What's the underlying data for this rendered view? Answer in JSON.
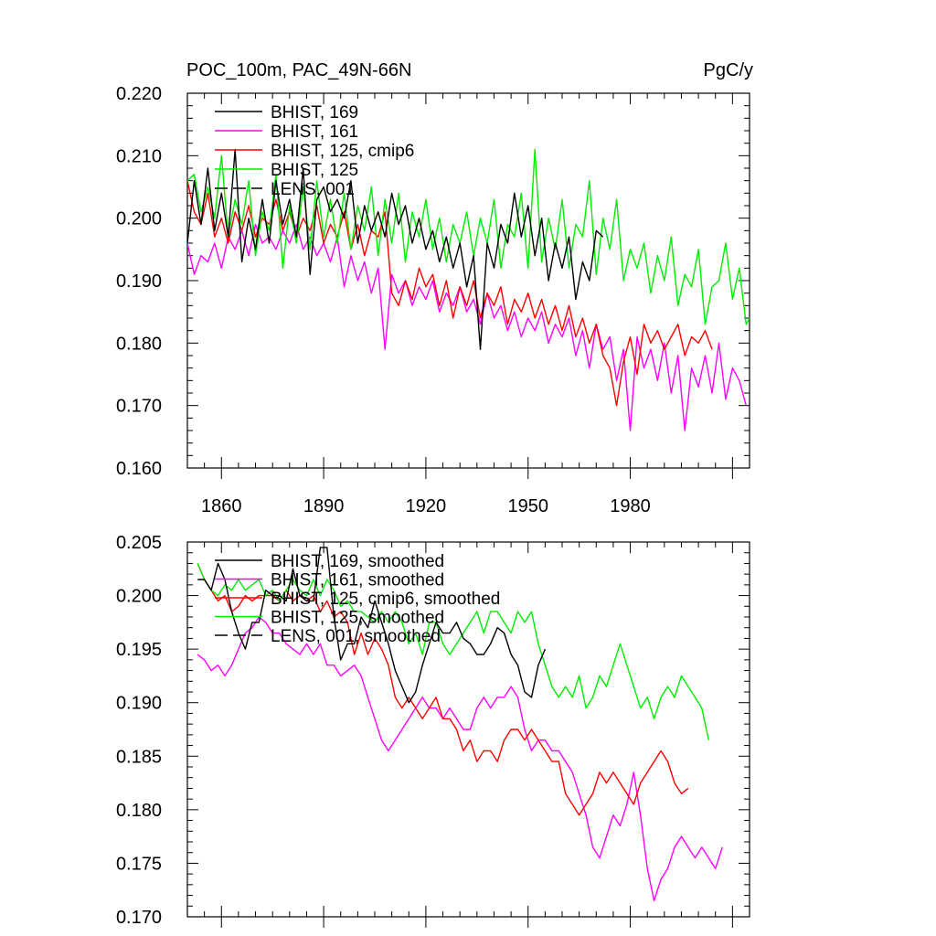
{
  "title_left": "POC_100m, PAC_49N-66N",
  "title_right": "PgC/y",
  "chart_data": [
    {
      "type": "line",
      "title": "POC_100m, PAC_49N-66N",
      "units": "PgC/y",
      "xlim": [
        1850,
        2015
      ],
      "ylim": [
        0.16,
        0.22
      ],
      "x_ticks": [
        1860,
        1890,
        1920,
        1950,
        1980
      ],
      "y_ticks": [
        "0.160",
        "0.170",
        "0.180",
        "0.190",
        "0.200",
        "0.210",
        "0.220"
      ],
      "legend": [
        {
          "label": "BHIST, 169",
          "color": "#000000",
          "dash": ""
        },
        {
          "label": "BHIST, 161",
          "color": "#ff00ff",
          "dash": ""
        },
        {
          "label": "BHIST, 125, cmip6",
          "color": "#ff0000",
          "dash": ""
        },
        {
          "label": "BHIST, 125",
          "color": "#00ee00",
          "dash": ""
        },
        {
          "label": "LENS, 001",
          "color": "#000000",
          "dash": "14,6"
        }
      ],
      "series": [
        {
          "name": "BHIST, 161",
          "color": "#ff00ff",
          "x_start": 1850,
          "step": 2,
          "values": [
            0.196,
            0.191,
            0.194,
            0.193,
            0.196,
            0.192,
            0.197,
            0.195,
            0.198,
            0.194,
            0.199,
            0.196,
            0.197,
            0.195,
            0.198,
            0.196,
            0.199,
            0.195,
            0.197,
            0.194,
            0.196,
            0.193,
            0.197,
            0.189,
            0.194,
            0.19,
            0.193,
            0.188,
            0.192,
            0.179,
            0.191,
            0.188,
            0.19,
            0.186,
            0.189,
            0.187,
            0.19,
            0.185,
            0.188,
            0.186,
            0.189,
            0.185,
            0.187,
            0.183,
            0.188,
            0.184,
            0.186,
            0.182,
            0.185,
            0.181,
            0.184,
            0.182,
            0.185,
            0.18,
            0.183,
            0.181,
            0.184,
            0.178,
            0.182,
            0.176,
            0.183,
            0.179,
            0.181,
            0.174,
            0.179,
            0.166,
            0.181,
            0.176,
            0.179,
            0.174,
            0.18,
            0.172,
            0.178,
            0.166,
            0.176,
            0.173,
            0.178,
            0.172,
            0.18,
            0.171,
            0.176,
            0.174,
            0.17
          ]
        },
        {
          "name": "BHIST, 125, cmip6",
          "color": "#ff0000",
          "x_start": 1850,
          "step": 2,
          "values": [
            0.206,
            0.201,
            0.199,
            0.204,
            0.197,
            0.2,
            0.196,
            0.201,
            0.198,
            0.202,
            0.197,
            0.2,
            0.199,
            0.203,
            0.198,
            0.201,
            0.197,
            0.2,
            0.198,
            0.202,
            0.196,
            0.199,
            0.197,
            0.201,
            0.195,
            0.199,
            0.194,
            0.198,
            0.197,
            0.201,
            0.188,
            0.186,
            0.19,
            0.187,
            0.192,
            0.189,
            0.191,
            0.186,
            0.19,
            0.184,
            0.189,
            0.186,
            0.19,
            0.184,
            0.188,
            0.186,
            0.189,
            0.183,
            0.187,
            0.185,
            0.188,
            0.184,
            0.187,
            0.183,
            0.186,
            0.182,
            0.186,
            0.181,
            0.184,
            0.18,
            0.183,
            0.178,
            0.176,
            0.17,
            0.177,
            0.181,
            0.175,
            0.183,
            0.18,
            0.182,
            0.179,
            0.181,
            0.183,
            0.178,
            0.181,
            0.18,
            0.182,
            0.179
          ]
        },
        {
          "name": "BHIST, 125",
          "color": "#00ee00",
          "x_start": 1850,
          "step": 2,
          "values": [
            0.206,
            0.207,
            0.201,
            0.205,
            0.2,
            0.21,
            0.197,
            0.203,
            0.199,
            0.206,
            0.194,
            0.201,
            0.198,
            0.207,
            0.192,
            0.202,
            0.196,
            0.205,
            0.195,
            0.206,
            0.197,
            0.203,
            0.196,
            0.204,
            0.195,
            0.202,
            0.198,
            0.205,
            0.194,
            0.203,
            0.196,
            0.204,
            0.193,
            0.201,
            0.197,
            0.203,
            0.195,
            0.2,
            0.193,
            0.199,
            0.196,
            0.201,
            0.194,
            0.2,
            0.196,
            0.203,
            0.192,
            0.199,
            0.197,
            0.204,
            0.192,
            0.211,
            0.193,
            0.2,
            0.195,
            0.203,
            0.192,
            0.199,
            0.197,
            0.206,
            0.191,
            0.2,
            0.195,
            0.203,
            0.19,
            0.195,
            0.192,
            0.196,
            0.188,
            0.194,
            0.19,
            0.197,
            0.186,
            0.191,
            0.189,
            0.195,
            0.183,
            0.189,
            0.19,
            0.196,
            0.187,
            0.192,
            0.183,
            0.185
          ]
        },
        {
          "name": "BHIST, 169",
          "color": "#000000",
          "x_start": 1850,
          "step": 2,
          "values": [
            0.196,
            0.206,
            0.199,
            0.208,
            0.198,
            0.204,
            0.197,
            0.211,
            0.193,
            0.2,
            0.195,
            0.203,
            0.196,
            0.206,
            0.199,
            0.203,
            0.197,
            0.208,
            0.191,
            0.203,
            0.205,
            0.201,
            0.203,
            0.2,
            0.206,
            0.196,
            0.202,
            0.198,
            0.201,
            0.197,
            0.204,
            0.199,
            0.202,
            0.196,
            0.2,
            0.195,
            0.198,
            0.193,
            0.197,
            0.192,
            0.196,
            0.189,
            0.194,
            0.179,
            0.196,
            0.192,
            0.199,
            0.196,
            0.204,
            0.197,
            0.202,
            0.194,
            0.2,
            0.19,
            0.196,
            0.192,
            0.197,
            0.187,
            0.193,
            0.19,
            0.198,
            0.197
          ]
        }
      ]
    },
    {
      "type": "line",
      "title": "",
      "xlim": [
        1850,
        2015
      ],
      "ylim": [
        0.17,
        0.205
      ],
      "x_ticks": [
        1860,
        1890,
        1920,
        1950,
        1980
      ],
      "y_ticks": [
        "0.170",
        "0.175",
        "0.180",
        "0.185",
        "0.190",
        "0.195",
        "0.200",
        "0.205"
      ],
      "legend": [
        {
          "label": "BHIST, 169, smoothed",
          "color": "#000000",
          "dash": ""
        },
        {
          "label": "BHIST, 161, smoothed",
          "color": "#ff00ff",
          "dash": ""
        },
        {
          "label": "BHIST, 125, cmip6, smoothed",
          "color": "#ff0000",
          "dash": ""
        },
        {
          "label": "BHIST, 125, smoothed",
          "color": "#00ee00",
          "dash": ""
        },
        {
          "label": "LENS, 001, smoothed",
          "color": "#000000",
          "dash": "14,6"
        }
      ],
      "series": [
        {
          "name": "BHIST, 161, smoothed",
          "color": "#ff00ff",
          "x_start": 1853,
          "step": 2,
          "values": [
            0.1945,
            0.194,
            0.193,
            0.1935,
            0.1925,
            0.1935,
            0.195,
            0.1965,
            0.197,
            0.198,
            0.1975,
            0.1965,
            0.1965,
            0.1955,
            0.195,
            0.1945,
            0.1955,
            0.1945,
            0.1955,
            0.1935,
            0.1935,
            0.1925,
            0.193,
            0.1935,
            0.1925,
            0.1905,
            0.1885,
            0.1865,
            0.1855,
            0.1865,
            0.1875,
            0.1885,
            0.1895,
            0.1905,
            0.1895,
            0.1895,
            0.1885,
            0.1895,
            0.1885,
            0.1875,
            0.1875,
            0.1895,
            0.1905,
            0.1895,
            0.1905,
            0.1905,
            0.1915,
            0.1905,
            0.1875,
            0.1855,
            0.1865,
            0.1865,
            0.1855,
            0.1855,
            0.1845,
            0.1835,
            0.1815,
            0.1795,
            0.1765,
            0.1755,
            0.1775,
            0.1795,
            0.1785,
            0.1805,
            0.1835,
            0.1795,
            0.1745,
            0.1715,
            0.1735,
            0.1745,
            0.1765,
            0.1775,
            0.1765,
            0.1755,
            0.1765,
            0.1755,
            0.1745,
            0.1765
          ]
        },
        {
          "name": "BHIST, 125, cmip6, smoothed",
          "color": "#ff0000",
          "x_start": 1853,
          "step": 2,
          "values": [
            0.203,
            0.2015,
            0.2005,
            0.1995,
            0.2,
            0.1985,
            0.199,
            0.2,
            0.1995,
            0.2,
            0.2,
            0.2,
            0.1995,
            0.2005,
            0.1995,
            0.2,
            0.1995,
            0.2,
            0.1985,
            0.1995,
            0.198,
            0.1985,
            0.1975,
            0.1945,
            0.1965,
            0.1945,
            0.196,
            0.195,
            0.1935,
            0.1905,
            0.1895,
            0.1905,
            0.1895,
            0.1885,
            0.1895,
            0.1905,
            0.1885,
            0.1885,
            0.1875,
            0.1855,
            0.1865,
            0.1845,
            0.1855,
            0.1855,
            0.1845,
            0.1865,
            0.1875,
            0.1875,
            0.1865,
            0.1875,
            0.1865,
            0.1855,
            0.1845,
            0.1845,
            0.1815,
            0.1805,
            0.1795,
            0.1805,
            0.1815,
            0.1835,
            0.1825,
            0.1835,
            0.1825,
            0.1815,
            0.1805,
            0.1825,
            0.1835,
            0.1845,
            0.1855,
            0.1845,
            0.1825,
            0.1815,
            0.182
          ]
        },
        {
          "name": "BHIST, 125, smoothed",
          "color": "#00ee00",
          "x_start": 1853,
          "step": 2,
          "values": [
            0.203,
            0.2015,
            0.2005,
            0.2,
            0.201,
            0.2005,
            0.2015,
            0.2005,
            0.201,
            0.2015,
            0.2,
            0.2005,
            0.1995,
            0.2005,
            0.2015,
            0.2005,
            0.2,
            0.2015,
            0.2,
            0.2015,
            0.2005,
            0.199,
            0.1995,
            0.1985,
            0.1985,
            0.198,
            0.1975,
            0.1985,
            0.1975,
            0.1985,
            0.1975,
            0.1955,
            0.1965,
            0.1945,
            0.1975,
            0.1975,
            0.1955,
            0.1945,
            0.1955,
            0.1965,
            0.1975,
            0.1985,
            0.1965,
            0.1985,
            0.1985,
            0.1975,
            0.1965,
            0.1985,
            0.1975,
            0.1985,
            0.1955,
            0.1935,
            0.1915,
            0.1905,
            0.1915,
            0.1905,
            0.1925,
            0.1895,
            0.1905,
            0.1925,
            0.1915,
            0.1935,
            0.1955,
            0.1935,
            0.1915,
            0.1895,
            0.1905,
            0.1885,
            0.1905,
            0.1915,
            0.1905,
            0.1925,
            0.1915,
            0.1905,
            0.1895,
            0.1865
          ]
        },
        {
          "name": "BHIST, 169, smoothed",
          "color": "#000000",
          "x_start": 1853,
          "step": 2,
          "values": [
            0.2015,
            0.2015,
            0.2005,
            0.203,
            0.2015,
            0.1985,
            0.1965,
            0.195,
            0.1975,
            0.1975,
            0.2005,
            0.2,
            0.2,
            0.1995,
            0.2025,
            0.2,
            0.1995,
            0.1995,
            0.2045,
            0.2045,
            0.198,
            0.194,
            0.1955,
            0.1955,
            0.198,
            0.197,
            0.1995,
            0.1975,
            0.1955,
            0.193,
            0.1915,
            0.19,
            0.191,
            0.1935,
            0.1955,
            0.1975,
            0.1965,
            0.1965,
            0.1975,
            0.196,
            0.1955,
            0.1945,
            0.1945,
            0.1955,
            0.197,
            0.1965,
            0.1945,
            0.1935,
            0.191,
            0.1905,
            0.1935,
            0.195
          ]
        }
      ]
    }
  ]
}
